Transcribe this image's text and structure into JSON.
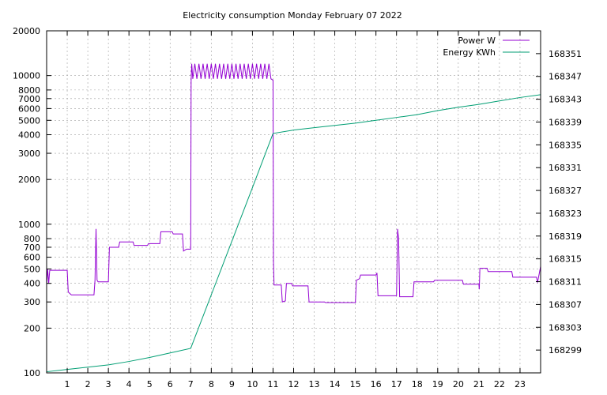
{
  "chart_data": {
    "type": "line",
    "title": "Electricity consumption Monday February 07 2022",
    "xlabel": "",
    "ylabel": "",
    "y2label": "",
    "xlim": [
      0,
      24
    ],
    "ylim": [
      100,
      20000
    ],
    "y_scale": "log",
    "y2lim": [
      168295,
      168355
    ],
    "grid": true,
    "legend_position": "top-right",
    "x_ticks": [
      "1",
      "2",
      "3",
      "4",
      "5",
      "6",
      "7",
      "8",
      "9",
      "10",
      "11",
      "12",
      "13",
      "14",
      "15",
      "16",
      "17",
      "18",
      "19",
      "20",
      "21",
      "22",
      "23"
    ],
    "y_ticks": [
      "100",
      "200",
      "300",
      "400",
      "500",
      "600",
      "700",
      "800",
      "1000",
      "2000",
      "3000",
      "4000",
      "5000",
      "6000",
      "7000",
      "8000",
      "10000",
      "20000"
    ],
    "y2_ticks": [
      "168299",
      "168303",
      "168307",
      "168311",
      "168315",
      "168319",
      "168323",
      "168327",
      "168331",
      "168335",
      "168339",
      "168343",
      "168347",
      "168351"
    ],
    "series": [
      {
        "name": "Power W",
        "axis": "y",
        "color": "#9400d3",
        "points": [
          [
            0,
            390
          ],
          [
            0.05,
            500
          ],
          [
            0.1,
            400
          ],
          [
            0.15,
            490
          ],
          [
            1.0,
            490
          ],
          [
            1.05,
            350
          ],
          [
            1.2,
            335
          ],
          [
            2.3,
            335
          ],
          [
            2.35,
            420
          ],
          [
            2.4,
            930
          ],
          [
            2.45,
            420
          ],
          [
            2.5,
            410
          ],
          [
            3.0,
            410
          ],
          [
            3.05,
            700
          ],
          [
            3.5,
            700
          ],
          [
            3.55,
            760
          ],
          [
            4.2,
            760
          ],
          [
            4.25,
            720
          ],
          [
            4.9,
            720
          ],
          [
            4.95,
            740
          ],
          [
            5.5,
            740
          ],
          [
            5.55,
            890
          ],
          [
            6.1,
            890
          ],
          [
            6.15,
            860
          ],
          [
            6.6,
            860
          ],
          [
            6.65,
            660
          ],
          [
            6.8,
            680
          ],
          [
            7.0,
            680
          ],
          [
            7.02,
            9200
          ],
          [
            7.05,
            12000
          ],
          [
            7.1,
            9500
          ],
          [
            7.2,
            12000
          ],
          [
            7.3,
            9500
          ],
          [
            7.4,
            12000
          ],
          [
            7.5,
            9500
          ],
          [
            7.6,
            12000
          ],
          [
            7.7,
            9500
          ],
          [
            7.8,
            12000
          ],
          [
            7.9,
            9500
          ],
          [
            8.0,
            12000
          ],
          [
            8.1,
            9500
          ],
          [
            8.2,
            12000
          ],
          [
            8.3,
            9500
          ],
          [
            8.4,
            12000
          ],
          [
            8.5,
            9500
          ],
          [
            8.6,
            12000
          ],
          [
            8.7,
            9500
          ],
          [
            8.8,
            12000
          ],
          [
            8.9,
            9500
          ],
          [
            9.0,
            12000
          ],
          [
            9.1,
            9500
          ],
          [
            9.2,
            12000
          ],
          [
            9.3,
            9500
          ],
          [
            9.4,
            12000
          ],
          [
            9.5,
            9500
          ],
          [
            9.6,
            12000
          ],
          [
            9.7,
            9500
          ],
          [
            9.8,
            12000
          ],
          [
            9.9,
            9500
          ],
          [
            10.0,
            12000
          ],
          [
            10.1,
            9500
          ],
          [
            10.2,
            12000
          ],
          [
            10.3,
            9500
          ],
          [
            10.4,
            12000
          ],
          [
            10.5,
            9500
          ],
          [
            10.6,
            12000
          ],
          [
            10.7,
            9500
          ],
          [
            10.8,
            12000
          ],
          [
            10.9,
            9500
          ],
          [
            11.0,
            9300
          ],
          [
            11.02,
            560
          ],
          [
            11.05,
            390
          ],
          [
            11.4,
            390
          ],
          [
            11.45,
            300
          ],
          [
            11.6,
            305
          ],
          [
            11.65,
            400
          ],
          [
            11.9,
            400
          ],
          [
            11.95,
            385
          ],
          [
            12.7,
            385
          ],
          [
            12.75,
            300
          ],
          [
            13.5,
            300
          ],
          [
            13.55,
            297
          ],
          [
            15.0,
            297
          ],
          [
            15.05,
            420
          ],
          [
            15.2,
            430
          ],
          [
            15.25,
            455
          ],
          [
            16.0,
            455
          ],
          [
            16.05,
            470
          ],
          [
            16.1,
            330
          ],
          [
            17.0,
            330
          ],
          [
            17.05,
            930
          ],
          [
            17.1,
            800
          ],
          [
            17.15,
            325
          ],
          [
            17.8,
            325
          ],
          [
            17.85,
            410
          ],
          [
            18.8,
            410
          ],
          [
            18.85,
            420
          ],
          [
            20.2,
            420
          ],
          [
            20.25,
            395
          ],
          [
            21.0,
            395
          ],
          [
            21.02,
            365
          ],
          [
            21.05,
            505
          ],
          [
            21.4,
            505
          ],
          [
            21.45,
            480
          ],
          [
            22.6,
            480
          ],
          [
            22.65,
            440
          ],
          [
            23.8,
            440
          ],
          [
            23.85,
            405
          ],
          [
            24.0,
            520
          ]
        ]
      },
      {
        "name": "Energy KWh",
        "axis": "y2",
        "color": "#009e73",
        "points": [
          [
            0,
            168295.2
          ],
          [
            1,
            168295.6
          ],
          [
            2,
            168296.0
          ],
          [
            3,
            168296.4
          ],
          [
            4,
            168297.0
          ],
          [
            5,
            168297.7
          ],
          [
            6,
            168298.5
          ],
          [
            7,
            168299.3
          ],
          [
            8,
            168308.7
          ],
          [
            9,
            168318.1
          ],
          [
            10,
            168327.5
          ],
          [
            11,
            168337.0
          ],
          [
            12,
            168337.6
          ],
          [
            13,
            168338.0
          ],
          [
            14,
            168338.4
          ],
          [
            15,
            168338.8
          ],
          [
            16,
            168339.3
          ],
          [
            17,
            168339.8
          ],
          [
            18,
            168340.3
          ],
          [
            19,
            168341.0
          ],
          [
            20,
            168341.6
          ],
          [
            21,
            168342.1
          ],
          [
            22,
            168342.7
          ],
          [
            23,
            168343.3
          ],
          [
            24,
            168343.8
          ]
        ]
      }
    ]
  }
}
